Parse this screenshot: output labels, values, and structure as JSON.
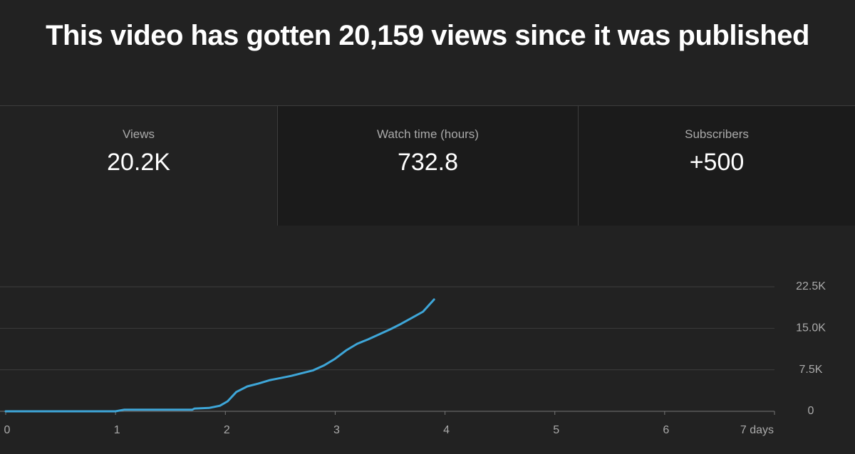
{
  "header": {
    "title": "This video has gotten 20,159 views since it was published"
  },
  "stats": [
    {
      "label": "Views",
      "value": "20.2K"
    },
    {
      "label": "Watch time (hours)",
      "value": "732.8"
    },
    {
      "label": "Subscribers",
      "value": "+500"
    }
  ],
  "chart_data": {
    "type": "line",
    "x": [
      0,
      1.0,
      1.08,
      1.7,
      1.72,
      1.85,
      1.95,
      2.02,
      2.1,
      2.2,
      2.3,
      2.4,
      2.5,
      2.6,
      2.7,
      2.8,
      2.9,
      3.0,
      3.1,
      3.2,
      3.3,
      3.4,
      3.5,
      3.6,
      3.7,
      3.8,
      3.9
    ],
    "values": [
      0,
      0,
      300,
      300,
      500,
      600,
      1000,
      1800,
      3500,
      4500,
      5000,
      5600,
      6000,
      6400,
      6900,
      7400,
      8300,
      9500,
      11000,
      12200,
      13000,
      13900,
      14800,
      15800,
      16900,
      18000,
      20200
    ],
    "color": "#3ea6d8",
    "xlim": [
      0,
      7
    ],
    "xticks": [
      0,
      1,
      2,
      3,
      4,
      5,
      6,
      {
        "value": 7,
        "label": "7 days"
      }
    ],
    "ylim": [
      0,
      22500
    ],
    "yticks": [
      0,
      {
        "value": 7500,
        "label": "7.5K"
      },
      {
        "value": 15000,
        "label": "15.0K"
      },
      {
        "value": 22500,
        "label": "22.5K"
      }
    ],
    "grid": true
  }
}
